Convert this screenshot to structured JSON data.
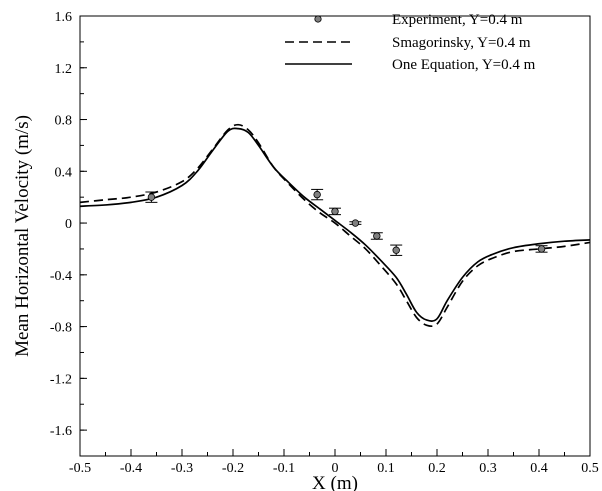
{
  "chart_data": {
    "type": "line",
    "title": "",
    "xlabel": "X (m)",
    "ylabel": "Mean Horizontal Velocity (m/s)",
    "xlim": [
      -0.5,
      0.5
    ],
    "ylim": [
      -1.8,
      1.6
    ],
    "x_ticks": [
      "-0.5",
      "-0.4",
      "-0.3",
      "-0.2",
      "-0.1",
      "0",
      "0.1",
      "0.2",
      "0.3",
      "0.4",
      "0.5"
    ],
    "y_ticks": [
      "1.6",
      "1.2",
      "0.8",
      "0.4",
      "0",
      "-0.4",
      "-0.8",
      "-1.2",
      "-1.6"
    ],
    "grid": false,
    "legend_position": "top-right",
    "series": [
      {
        "name": "Experiment, Y=0.4 m",
        "style": "points-with-errorbars",
        "color": "#808080",
        "points": [
          {
            "x": -0.36,
            "y": 0.2,
            "err": 0.04
          },
          {
            "x": -0.035,
            "y": 0.22,
            "err": 0.04
          },
          {
            "x": 0.0,
            "y": 0.09,
            "err": 0.025
          },
          {
            "x": 0.04,
            "y": 0.0,
            "err": 0.01
          },
          {
            "x": 0.082,
            "y": -0.1,
            "err": 0.025
          },
          {
            "x": 0.12,
            "y": -0.21,
            "err": 0.04
          },
          {
            "x": 0.405,
            "y": -0.2,
            "err": 0.025
          }
        ]
      },
      {
        "name": "Smagorinsky, Y=0.4 m",
        "style": "dashed",
        "color": "#000000",
        "x": [
          -0.5,
          -0.45,
          -0.4,
          -0.35,
          -0.3,
          -0.27,
          -0.24,
          -0.21,
          -0.19,
          -0.17,
          -0.15,
          -0.12,
          -0.09,
          -0.06,
          -0.03,
          0.0,
          0.03,
          0.06,
          0.09,
          0.12,
          0.14,
          0.16,
          0.18,
          0.2,
          0.22,
          0.25,
          0.28,
          0.31,
          0.35,
          0.4,
          0.45,
          0.5
        ],
        "y": [
          0.16,
          0.18,
          0.2,
          0.24,
          0.32,
          0.42,
          0.57,
          0.72,
          0.76,
          0.72,
          0.62,
          0.43,
          0.3,
          0.18,
          0.08,
          0.0,
          -0.1,
          -0.2,
          -0.33,
          -0.47,
          -0.6,
          -0.73,
          -0.79,
          -0.78,
          -0.65,
          -0.45,
          -0.33,
          -0.27,
          -0.22,
          -0.2,
          -0.18,
          -0.15
        ]
      },
      {
        "name": "One Equation, Y=0.4 m",
        "style": "solid",
        "color": "#000000",
        "x": [
          -0.5,
          -0.45,
          -0.4,
          -0.35,
          -0.3,
          -0.27,
          -0.24,
          -0.21,
          -0.19,
          -0.17,
          -0.15,
          -0.12,
          -0.09,
          -0.06,
          -0.03,
          0.0,
          0.03,
          0.06,
          0.09,
          0.12,
          0.14,
          0.16,
          0.18,
          0.2,
          0.22,
          0.25,
          0.28,
          0.31,
          0.35,
          0.4,
          0.45,
          0.5
        ],
        "y": [
          0.13,
          0.14,
          0.16,
          0.2,
          0.29,
          0.4,
          0.56,
          0.71,
          0.73,
          0.7,
          0.6,
          0.43,
          0.31,
          0.2,
          0.11,
          0.02,
          -0.07,
          -0.17,
          -0.29,
          -0.42,
          -0.55,
          -0.69,
          -0.75,
          -0.74,
          -0.6,
          -0.42,
          -0.3,
          -0.24,
          -0.19,
          -0.16,
          -0.14,
          -0.13
        ]
      }
    ]
  }
}
